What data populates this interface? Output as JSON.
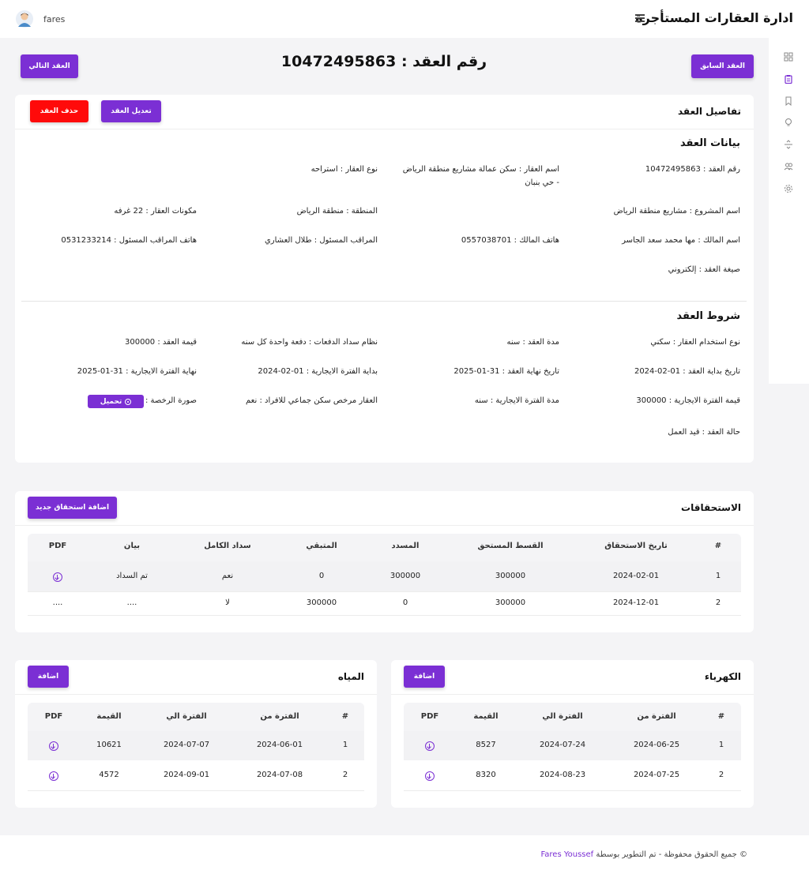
{
  "header": {
    "app_title": "ادارة العقارات المستأجرة",
    "username": "fares"
  },
  "nav": {
    "prev_contract": "العقد السابق",
    "next_contract": "العقد التالي",
    "contract_title": "رقم العقد : 10472495863"
  },
  "details": {
    "card_title": "تفاصيل العقد",
    "edit_button": "تعديل العقد",
    "delete_button": "حذف العقد",
    "contract_data_title": "بيانات العقد",
    "contract_number": "رقم العقد : 10472495863",
    "property_name": "اسم العقار : سكن عمالة مشاريع منطقة الرياض - حي بنبان",
    "property_type": "نوع العقار : استراحه",
    "project_name": "اسم المشروع : مشاريع منطقة الرياض",
    "region": "المنطقة : منطقة الرياض",
    "property_components": "مكونات العقار : 22 غرفه",
    "owner_name": "اسم المالك : مها محمد سعد الجاسر",
    "owner_phone": "هاتف المالك : 0557038701",
    "supervisor": "المراقب المسئول : طلال العشاري",
    "supervisor_phone": "هاتف المراقب المسئول : 0531233214",
    "contract_form": "صيغة العقد : إلكتروني",
    "terms_title": "شروط العقد",
    "usage_type": "نوع استخدام العقار : سكني",
    "contract_duration": "مدة العقد : سنه",
    "payment_system": "نظام سداد الدفعات : دفعة واحدة كل سنه",
    "contract_value": "قيمة العقد : 300000",
    "start_date": "تاريخ بداية العقد : 01-02-2024",
    "end_date": "تاريخ نهاية العقد : 31-01-2025",
    "rental_start": "بداية الفترة الايجارية : 01-02-2024",
    "rental_end": "نهاية الفترة الايجارية : 31-01-2025",
    "rental_value": "قيمة الفترة الايجارية : 300000",
    "rental_duration": "مدة الفترة الايجارية : سنه",
    "licensed": "العقار مرخص سكن جماعي للافراد : نعم",
    "license_image": "صورة الرخصة :",
    "download_label": "تحميل",
    "contract_status": "حالة العقد : قيد العمل"
  },
  "dues": {
    "title": "الاستحقاقات",
    "add_button": "اضافة استحقاق جديد",
    "headers": [
      "#",
      "تاريخ الاستحقاق",
      "القسط المستحق",
      "المسدد",
      "المتبقي",
      "سداد الكامل",
      "بيان",
      "PDF"
    ],
    "rows": [
      [
        "1",
        "2024-02-01",
        "300000",
        "300000",
        "0",
        "نعم",
        "تم السداد",
        "pdf-download-icon"
      ],
      [
        "2",
        "2024-12-01",
        "300000",
        "0",
        "300000",
        "لا",
        "....",
        "...."
      ]
    ]
  },
  "electricity": {
    "title": "الكهرباء",
    "add_button": "اضافة",
    "headers": [
      "#",
      "الفترة من",
      "الفترة الي",
      "القيمة",
      "PDF"
    ],
    "rows": [
      [
        "1",
        "2024-06-25",
        "2024-07-24",
        "8527"
      ],
      [
        "2",
        "2024-07-25",
        "2024-08-23",
        "8320"
      ]
    ]
  },
  "water": {
    "title": "المياه",
    "add_button": "اضافة",
    "headers": [
      "#",
      "الفترة من",
      "الفترة الي",
      "القيمة",
      "PDF"
    ],
    "rows": [
      [
        "1",
        "2024-06-01",
        "2024-07-07",
        "10621"
      ],
      [
        "2",
        "2024-07-08",
        "2024-09-01",
        "4572"
      ]
    ]
  },
  "footer": {
    "text": "© جميع الحقوق محفوظة - تم التطوير بوسطة",
    "author": "Fares Youssef"
  },
  "colors": {
    "accent": "#7b2fd4",
    "danger": "#ff0a0a",
    "background": "#f4f4f6"
  }
}
